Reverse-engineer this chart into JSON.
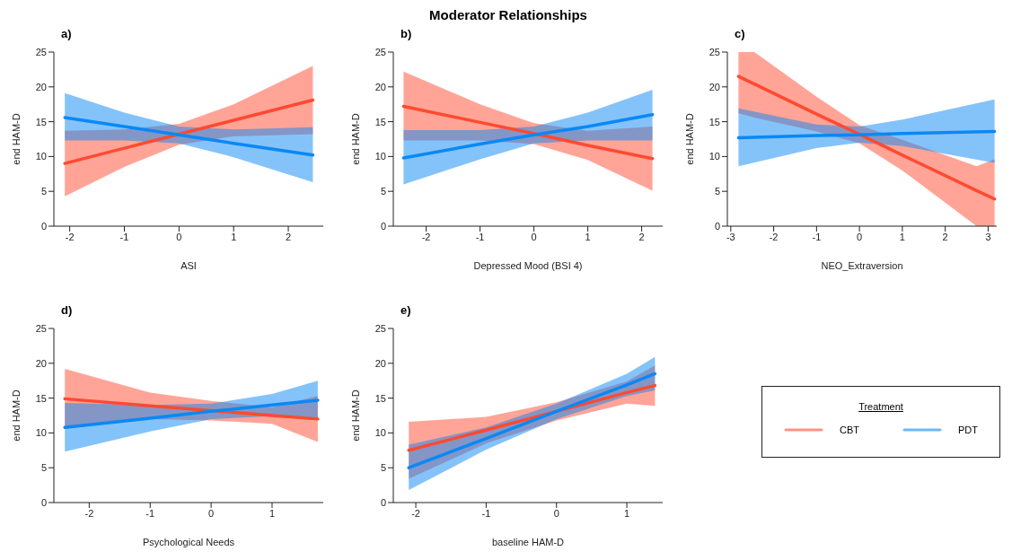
{
  "chart_data": [
    {
      "type": "line",
      "subtitle": "a)",
      "xlabel": "ASI",
      "ylabel": "end HAM-D",
      "xlim": [
        -2.29,
        2.64
      ],
      "xticks": [
        -2,
        -1,
        0,
        1,
        2
      ],
      "ylim": [
        0,
        25
      ],
      "yticks": [
        0,
        5,
        10,
        15,
        20,
        25
      ],
      "x": [
        -2.09,
        -1,
        0,
        1,
        2.45
      ],
      "series": [
        {
          "color": "#ff4a30",
          "values": [
            9.0,
            11.2,
            13.2,
            15.2,
            18.1
          ],
          "lower": [
            4.3,
            8.5,
            11.7,
            12.9,
            13.2
          ],
          "upper": [
            13.7,
            13.9,
            14.7,
            17.5,
            23.0
          ]
        },
        {
          "color": "#0a88f5",
          "values": [
            15.6,
            14.3,
            13.1,
            11.9,
            10.2
          ],
          "lower": [
            12.3,
            12.3,
            11.9,
            9.9,
            6.3
          ],
          "upper": [
            19.1,
            16.3,
            14.3,
            13.9,
            14.2
          ]
        }
      ]
    },
    {
      "type": "line",
      "title": "Moderator Relationships",
      "subtitle": "b)",
      "xlabel": "Depressed Mood (BSI 4)",
      "ylabel": "end HAM-D",
      "xlim": [
        -2.61,
        2.39
      ],
      "xticks": [
        -2,
        -1,
        0,
        1,
        2
      ],
      "ylim": [
        0,
        25
      ],
      "yticks": [
        0,
        5,
        10,
        15,
        20,
        25
      ],
      "x": [
        -2.42,
        -1,
        0,
        1,
        2.2
      ],
      "series": [
        {
          "color": "#ff4a30",
          "values": [
            17.2,
            14.9,
            13.3,
            11.6,
            9.7
          ],
          "lower": [
            12.3,
            12.3,
            11.8,
            9.5,
            5.1
          ],
          "upper": [
            22.2,
            17.5,
            14.8,
            13.7,
            14.3
          ]
        },
        {
          "color": "#0a88f5",
          "values": [
            9.8,
            11.8,
            13.1,
            14.3,
            16.0
          ],
          "lower": [
            6.0,
            9.6,
            11.9,
            12.3,
            12.3
          ],
          "upper": [
            13.8,
            13.8,
            14.3,
            16.3,
            19.6
          ]
        }
      ]
    },
    {
      "type": "line",
      "subtitle": "c)",
      "xlabel": "NEO_Extraversion",
      "ylabel": "end HAM-D",
      "xlim": [
        -3.08,
        3.2
      ],
      "xticks": [
        -3,
        -2,
        -1,
        0,
        1,
        2,
        3
      ],
      "ylim": [
        0,
        25
      ],
      "yticks": [
        0,
        5,
        10,
        15,
        20,
        25
      ],
      "series": [
        {
          "color": "#ff4a30",
          "x": [
            -2.82,
            -2.45,
            -1,
            0,
            1,
            2.73,
            3.15
          ],
          "values": [
            21.5,
            20.4,
            16.1,
            13.2,
            10.2,
            5.1,
            3.9
          ],
          "lower": [
            16.2,
            15.6,
            13.6,
            11.9,
            8.0,
            0,
            0
          ],
          "upper": [
            25,
            25,
            18.6,
            14.5,
            12.4,
            8.6,
            9.6
          ]
        },
        {
          "color": "#0a88f5",
          "x": [
            -2.82,
            -1,
            0,
            1,
            3.15
          ],
          "values": [
            12.7,
            13.0,
            13.1,
            13.3,
            13.6
          ],
          "lower": [
            8.6,
            11.2,
            12.0,
            11.5,
            9.1
          ],
          "upper": [
            16.9,
            14.6,
            14.3,
            15.3,
            18.2
          ]
        }
      ]
    },
    {
      "type": "line",
      "subtitle": "d)",
      "xlabel": "Psychological Needs",
      "ylabel": "end HAM-D",
      "xlim": [
        -2.58,
        1.84
      ],
      "xticks": [
        -2,
        -1,
        0,
        1
      ],
      "ylim": [
        0,
        25
      ],
      "yticks": [
        0,
        5,
        10,
        15,
        20,
        25
      ],
      "x": [
        -2.4,
        -1,
        0,
        1,
        1.75
      ],
      "series": [
        {
          "color": "#ff4a30",
          "values": [
            14.9,
            13.9,
            13.2,
            12.5,
            12.0
          ],
          "lower": [
            10.6,
            12.0,
            11.8,
            11.3,
            8.7
          ],
          "upper": [
            19.2,
            15.8,
            14.6,
            13.7,
            15.3
          ]
        },
        {
          "color": "#0a88f5",
          "values": [
            10.8,
            12.1,
            13.1,
            14.0,
            14.7
          ],
          "lower": [
            7.3,
            10.2,
            12.0,
            12.4,
            11.9
          ],
          "upper": [
            14.3,
            14.0,
            14.2,
            15.6,
            17.5
          ]
        }
      ]
    },
    {
      "type": "line",
      "subtitle": "e)",
      "xlabel": "baseline HAM-D",
      "ylabel": "end HAM-D",
      "xlim": [
        -2.32,
        1.51
      ],
      "xticks": [
        -2,
        -1,
        0,
        1
      ],
      "ylim": [
        0,
        25
      ],
      "yticks": [
        0,
        5,
        10,
        15,
        20,
        25
      ],
      "legend": "right",
      "legend_title": "Treatment",
      "x": [
        -2.1,
        -1,
        0,
        1,
        1.4
      ],
      "series": [
        {
          "name": "CBT",
          "color": "#ff4a30",
          "values": [
            7.5,
            10.4,
            13.1,
            15.8,
            16.8
          ],
          "lower": [
            3.4,
            8.5,
            11.8,
            14.2,
            13.9
          ],
          "upper": [
            11.6,
            12.3,
            14.4,
            17.4,
            19.7
          ]
        },
        {
          "name": "PDT",
          "color": "#0a88f5",
          "values": [
            5.0,
            9.2,
            13.1,
            16.9,
            18.5
          ],
          "lower": [
            1.8,
            7.6,
            12.0,
            15.3,
            16.1
          ],
          "upper": [
            8.3,
            10.8,
            14.2,
            18.5,
            20.9
          ]
        }
      ]
    }
  ]
}
